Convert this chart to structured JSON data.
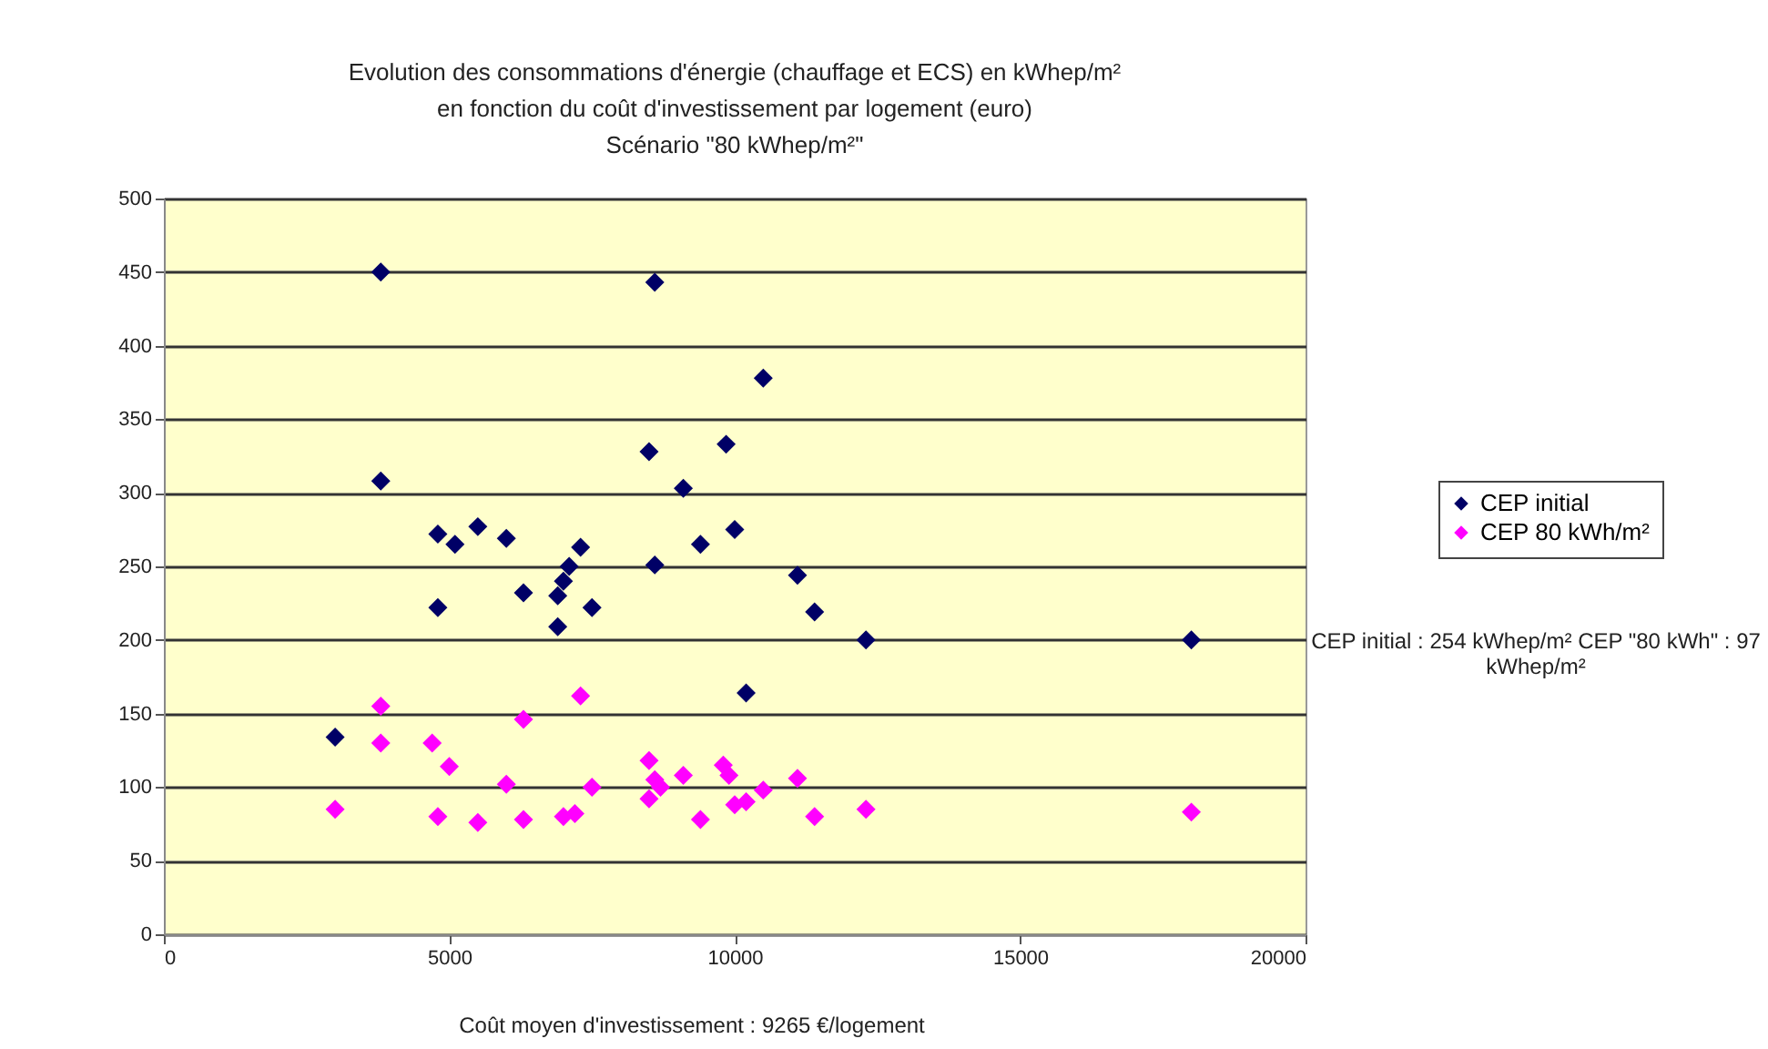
{
  "chart_data": {
    "type": "scatter",
    "title": [
      "Evolution des consommations d'énergie (chauffage et ECS) en kWhep/m²",
      "en fonction du coût d'investissement par logement (euro)",
      "Scénario \"80 kWhep/m²\""
    ],
    "xlim": [
      0,
      20000
    ],
    "xticks": [
      0,
      5000,
      10000,
      15000,
      20000
    ],
    "ylim": [
      0,
      500
    ],
    "yticks": [
      0,
      50,
      100,
      150,
      200,
      250,
      300,
      350,
      400,
      450,
      500
    ],
    "grid": "y",
    "legend": "right",
    "marker": "diamond",
    "annotations": [
      "CEP initial : 254 kWhep/m² CEP \"80 kWh\" : 97 kWhep/m²",
      "Coût moyen d'investissement : 9265 €/logement"
    ],
    "series": [
      {
        "name": "CEP initial",
        "color": "#000066",
        "x": [
          3800,
          8600,
          10500,
          8500,
          9850,
          9100,
          3800,
          5500,
          4800,
          5100,
          6000,
          7300,
          7100,
          8600,
          9400,
          10000,
          7000,
          6900,
          6300,
          7500,
          4800,
          11100,
          11400,
          6900,
          12300,
          18000,
          10200,
          3000
        ],
        "values": [
          450,
          443,
          378,
          328,
          333,
          303,
          308,
          277,
          272,
          265,
          269,
          263,
          250,
          251,
          265,
          275,
          240,
          230,
          232,
          222,
          222,
          244,
          219,
          209,
          200,
          200,
          164,
          134
        ]
      },
      {
        "name": "CEP 80 kWh/m²",
        "color": "#ff00ff",
        "x": [
          3000,
          3800,
          3800,
          4700,
          5000,
          6000,
          6300,
          7300,
          7500,
          4800,
          5500,
          6300,
          7000,
          7200,
          8500,
          8500,
          8600,
          9100,
          9800,
          9900,
          9400,
          10200,
          10500,
          11100,
          11400,
          12300,
          18000,
          8700,
          10000
        ],
        "values": [
          85,
          155,
          130,
          130,
          114,
          102,
          146,
          162,
          100,
          80,
          76,
          78,
          80,
          82,
          118,
          92,
          105,
          108,
          115,
          108,
          78,
          90,
          98,
          106,
          80,
          85,
          83,
          100,
          88
        ]
      }
    ]
  }
}
